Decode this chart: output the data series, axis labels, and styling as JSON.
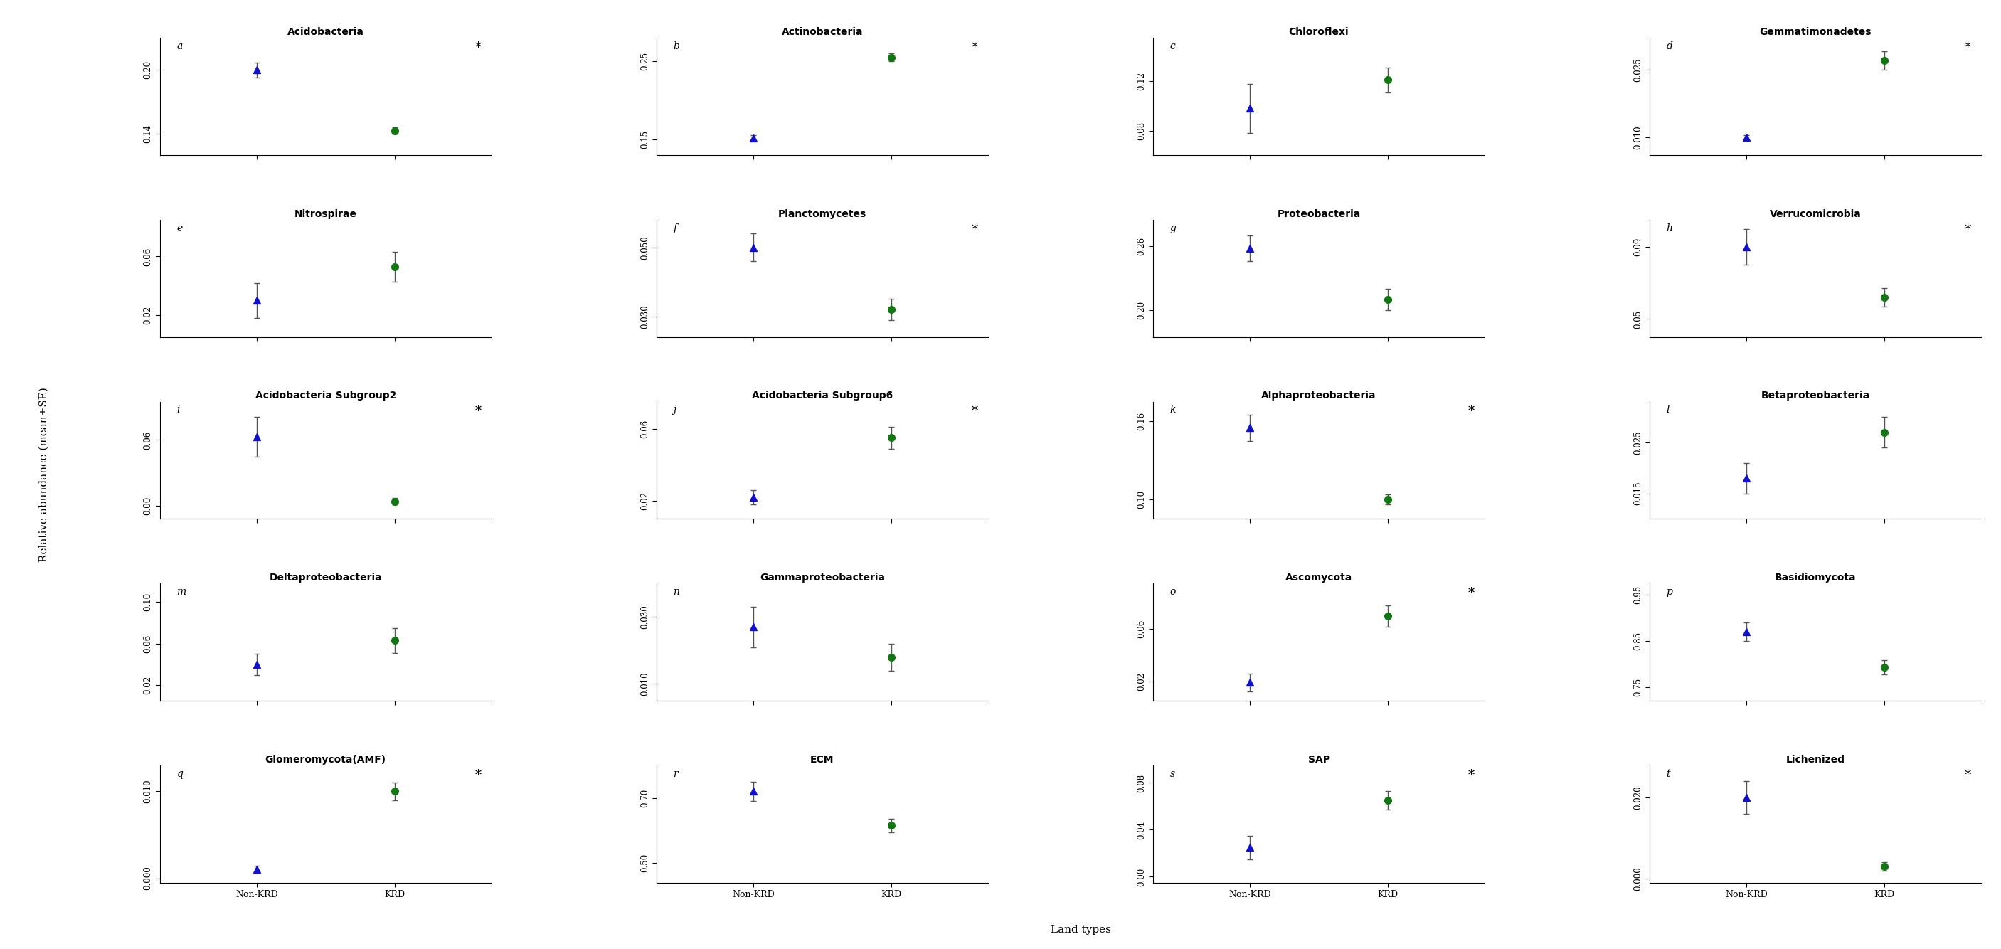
{
  "subplots": [
    {
      "title": "Acidobacteria",
      "label": "a",
      "ylim": [
        0.12,
        0.23
      ],
      "yticks": [
        0.14,
        0.2
      ],
      "ytick_labels": [
        "0.14",
        "0.20"
      ],
      "non_krd": {
        "mean": 0.2,
        "se": 0.007
      },
      "krd": {
        "mean": 0.143,
        "se": 0.003
      },
      "sig": true
    },
    {
      "title": "Actinobacteria",
      "label": "b",
      "ylim": [
        0.13,
        0.28
      ],
      "yticks": [
        0.15,
        0.25
      ],
      "ytick_labels": [
        "0.15",
        "0.25"
      ],
      "non_krd": {
        "mean": 0.152,
        "se": 0.004
      },
      "krd": {
        "mean": 0.255,
        "se": 0.005
      },
      "sig": true
    },
    {
      "title": "Chloroflexi",
      "label": "c",
      "ylim": [
        0.06,
        0.155
      ],
      "yticks": [
        0.08,
        0.12
      ],
      "ytick_labels": [
        "0.08",
        "0.12"
      ],
      "non_krd": {
        "mean": 0.098,
        "se": 0.02
      },
      "krd": {
        "mean": 0.121,
        "se": 0.01
      },
      "sig": false
    },
    {
      "title": "Gemmatimonadetes",
      "label": "d",
      "ylim": [
        0.006,
        0.032
      ],
      "yticks": [
        0.01,
        0.025
      ],
      "ytick_labels": [
        "0.010",
        "0.025"
      ],
      "non_krd": {
        "mean": 0.01,
        "se": 0.0005
      },
      "krd": {
        "mean": 0.027,
        "se": 0.002
      },
      "sig": true
    },
    {
      "title": "Nitrospirae",
      "label": "e",
      "ylim": [
        0.005,
        0.085
      ],
      "yticks": [
        0.02,
        0.06
      ],
      "ytick_labels": [
        "0.02",
        "0.06"
      ],
      "non_krd": {
        "mean": 0.03,
        "se": 0.012
      },
      "krd": {
        "mean": 0.053,
        "se": 0.01
      },
      "sig": false
    },
    {
      "title": "Planctomycetes",
      "label": "f",
      "ylim": [
        0.024,
        0.058
      ],
      "yticks": [
        0.03,
        0.05
      ],
      "ytick_labels": [
        "0.030",
        "0.050"
      ],
      "non_krd": {
        "mean": 0.05,
        "se": 0.004
      },
      "krd": {
        "mean": 0.032,
        "se": 0.003
      },
      "sig": true
    },
    {
      "title": "Proteobacteria",
      "label": "g",
      "ylim": [
        0.175,
        0.285
      ],
      "yticks": [
        0.2,
        0.26
      ],
      "ytick_labels": [
        "0.20",
        "0.26"
      ],
      "non_krd": {
        "mean": 0.258,
        "se": 0.012
      },
      "krd": {
        "mean": 0.21,
        "se": 0.01
      },
      "sig": false
    },
    {
      "title": "Verrucomicrobia",
      "label": "h",
      "ylim": [
        0.04,
        0.105
      ],
      "yticks": [
        0.05,
        0.09
      ],
      "ytick_labels": [
        "0.05",
        "0.09"
      ],
      "non_krd": {
        "mean": 0.09,
        "se": 0.01
      },
      "krd": {
        "mean": 0.062,
        "se": 0.005
      },
      "sig": true
    },
    {
      "title": "Acidobacteria Subgroup2",
      "label": "i",
      "ylim": [
        -0.012,
        0.095
      ],
      "yticks": [
        0.0,
        0.06
      ],
      "ytick_labels": [
        "0.00",
        "0.06"
      ],
      "non_krd": {
        "mean": 0.063,
        "se": 0.018
      },
      "krd": {
        "mean": 0.004,
        "se": 0.003
      },
      "sig": true
    },
    {
      "title": "Acidobacteria Subgroup6",
      "label": "j",
      "ylim": [
        0.01,
        0.075
      ],
      "yticks": [
        0.02,
        0.06
      ],
      "ytick_labels": [
        "0.02",
        "0.06"
      ],
      "non_krd": {
        "mean": 0.022,
        "se": 0.004
      },
      "krd": {
        "mean": 0.055,
        "se": 0.006
      },
      "sig": true
    },
    {
      "title": "Alphaproteobacteria",
      "label": "k",
      "ylim": [
        0.085,
        0.175
      ],
      "yticks": [
        0.1,
        0.16
      ],
      "ytick_labels": [
        "0.10",
        "0.16"
      ],
      "non_krd": {
        "mean": 0.155,
        "se": 0.01
      },
      "krd": {
        "mean": 0.1,
        "se": 0.004
      },
      "sig": true
    },
    {
      "title": "Betaproteobacteria",
      "label": "l",
      "ylim": [
        0.01,
        0.033
      ],
      "yticks": [
        0.015,
        0.025
      ],
      "ytick_labels": [
        "0.015",
        "0.025"
      ],
      "non_krd": {
        "mean": 0.018,
        "se": 0.003
      },
      "krd": {
        "mean": 0.027,
        "se": 0.003
      },
      "sig": false
    },
    {
      "title": "Deltaproteobacteria",
      "label": "m",
      "ylim": [
        0.005,
        0.118
      ],
      "yticks": [
        0.02,
        0.06,
        0.1
      ],
      "ytick_labels": [
        "0.02",
        "0.06",
        "0.10"
      ],
      "non_krd": {
        "mean": 0.04,
        "se": 0.01
      },
      "krd": {
        "mean": 0.063,
        "se": 0.012
      },
      "sig": false
    },
    {
      "title": "Gammaproteobacteria",
      "label": "n",
      "ylim": [
        0.005,
        0.04
      ],
      "yticks": [
        0.01,
        0.03
      ],
      "ytick_labels": [
        "0.010",
        "0.030"
      ],
      "non_krd": {
        "mean": 0.027,
        "se": 0.006
      },
      "krd": {
        "mean": 0.018,
        "se": 0.004
      },
      "sig": false
    },
    {
      "title": "Ascomycota",
      "label": "o",
      "ylim": [
        0.005,
        0.095
      ],
      "yticks": [
        0.02,
        0.06
      ],
      "ytick_labels": [
        "0.02",
        "0.06"
      ],
      "non_krd": {
        "mean": 0.019,
        "se": 0.007
      },
      "krd": {
        "mean": 0.07,
        "se": 0.008
      },
      "sig": true
    },
    {
      "title": "Basidiomycota",
      "label": "p",
      "ylim": [
        0.72,
        0.975
      ],
      "yticks": [
        0.75,
        0.85,
        0.95
      ],
      "ytick_labels": [
        "0.75",
        "0.85",
        "0.95"
      ],
      "non_krd": {
        "mean": 0.87,
        "se": 0.02
      },
      "krd": {
        "mean": 0.793,
        "se": 0.015
      },
      "sig": false
    },
    {
      "title": "Glomeromycota(AMF)",
      "label": "q",
      "ylim": [
        -0.0005,
        0.013
      ],
      "yticks": [
        0.0,
        0.01
      ],
      "ytick_labels": [
        "0.000",
        "0.010"
      ],
      "non_krd": {
        "mean": 0.001,
        "se": 0.0004
      },
      "krd": {
        "mean": 0.01,
        "se": 0.001
      },
      "sig": true
    },
    {
      "title": "ECM",
      "label": "r",
      "ylim": [
        0.44,
        0.8
      ],
      "yticks": [
        0.5,
        0.7
      ],
      "ytick_labels": [
        "0.50",
        "0.70"
      ],
      "non_krd": {
        "mean": 0.72,
        "se": 0.03
      },
      "krd": {
        "mean": 0.615,
        "se": 0.02
      },
      "sig": false
    },
    {
      "title": "SAP",
      "label": "s",
      "ylim": [
        -0.005,
        0.095
      ],
      "yticks": [
        0.0,
        0.04,
        0.08
      ],
      "ytick_labels": [
        "0.00",
        "0.04",
        "0.08"
      ],
      "non_krd": {
        "mean": 0.025,
        "se": 0.01
      },
      "krd": {
        "mean": 0.065,
        "se": 0.008
      },
      "sig": true
    },
    {
      "title": "Lichenized",
      "label": "t",
      "ylim": [
        -0.001,
        0.028
      ],
      "yticks": [
        0.0,
        0.02
      ],
      "ytick_labels": [
        "0.000",
        "0.020"
      ],
      "non_krd": {
        "mean": 0.02,
        "se": 0.004
      },
      "krd": {
        "mean": 0.003,
        "se": 0.001
      },
      "sig": true
    }
  ],
  "non_krd_color": "#1111CC",
  "krd_color": "#117711",
  "ylabel": "Relative abundance (mean±SE)",
  "xlabel": "Land types",
  "xtick_labels": [
    "Non-KRD",
    "KRD"
  ],
  "nrows": 5,
  "ncols": 4,
  "fig_width": 28.13,
  "fig_height": 13.34
}
